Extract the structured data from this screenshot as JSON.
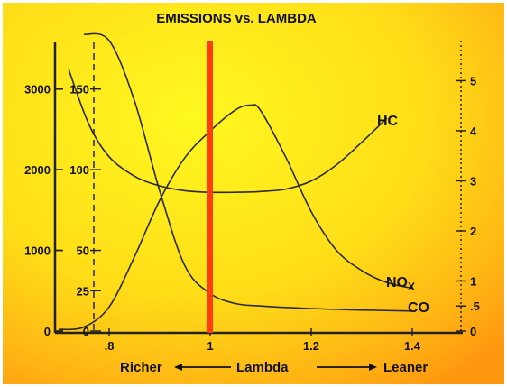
{
  "chart_data": {
    "type": "line",
    "title": "EMISSIONS vs. LAMBDA",
    "xaxis": {
      "min": 0.7,
      "max": 1.5,
      "ticks": [
        0.8,
        1.0,
        1.2,
        1.4
      ],
      "tick_labels": [
        ".8",
        "1",
        "1.2",
        "1.4"
      ],
      "label_left": "Richer",
      "label_center": "Lambda",
      "label_right": "Leaner"
    },
    "axes": {
      "nox_ppm": {
        "min": 0,
        "max": 3600,
        "ticks": [
          0,
          1000,
          2000,
          3000
        ],
        "tick_labels": [
          "0",
          "1000",
          "2000",
          "3000"
        ]
      },
      "hc_ppm": {
        "min": 0,
        "max": 180,
        "ticks": [
          0,
          25,
          50,
          100,
          150
        ],
        "tick_labels": [
          "0",
          "25",
          "50",
          "100",
          "150"
        ]
      },
      "co_pct": {
        "min": 0,
        "max": 5.8,
        "ticks": [
          0,
          0.5,
          1,
          2,
          3,
          4,
          5
        ],
        "tick_labels": [
          "0",
          ".5",
          "1",
          "2",
          "3",
          "4",
          "5"
        ]
      }
    },
    "stoichiometric_line": {
      "x": 1.0,
      "color": "#ff3b10"
    },
    "series": [
      {
        "name": "HC",
        "axis": "hc_ppm",
        "x": [
          0.72,
          0.76,
          0.8,
          0.85,
          0.9,
          0.95,
          1.0,
          1.05,
          1.1,
          1.15,
          1.2,
          1.25,
          1.3,
          1.35
        ],
        "y": [
          162,
          128,
          108,
          96,
          90,
          87,
          86,
          86,
          86.5,
          88,
          93,
          103,
          117,
          132
        ]
      },
      {
        "name": "NOx",
        "axis": "nox_ppm",
        "x": [
          0.7,
          0.75,
          0.8,
          0.85,
          0.9,
          0.95,
          1.0,
          1.05,
          1.08,
          1.1,
          1.15,
          1.2,
          1.25,
          1.3,
          1.35,
          1.4
        ],
        "y": [
          20,
          50,
          300,
          920,
          1620,
          2150,
          2480,
          2740,
          2800,
          2730,
          2150,
          1480,
          1000,
          750,
          600,
          530
        ]
      },
      {
        "name": "CO",
        "axis": "co_pct",
        "x": [
          0.75,
          0.8,
          0.85,
          0.9,
          0.95,
          1.0,
          1.05,
          1.1,
          1.2,
          1.3,
          1.4
        ],
        "y": [
          6.2,
          5.8,
          4.6,
          2.8,
          1.3,
          0.75,
          0.55,
          0.5,
          0.45,
          0.42,
          0.4
        ]
      }
    ],
    "series_labels": {
      "HC": "HC",
      "NOx_main": "NO",
      "NOx_sub": "X",
      "CO": "CO"
    },
    "grid": false,
    "colors": {
      "background_inner": "#fff71a",
      "background_outer": "#ff9c12",
      "curve": "#2a2a20",
      "axis": "#222222",
      "lambda_line": "#ff3b10"
    }
  }
}
